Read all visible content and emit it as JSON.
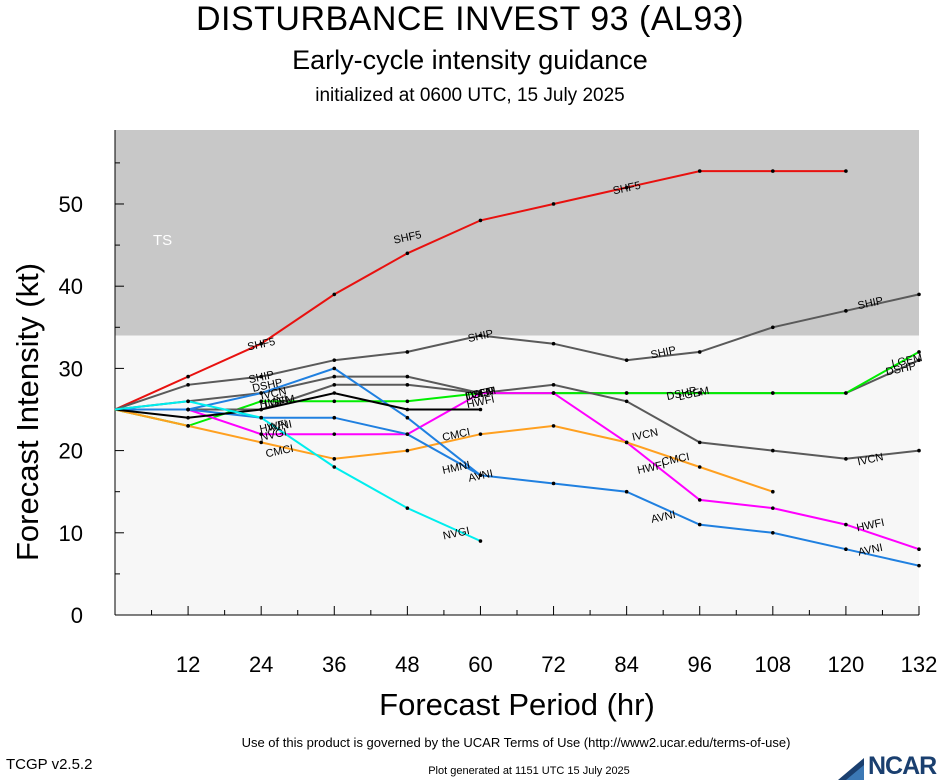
{
  "header": {
    "title": "DISTURBANCE INVEST 93 (AL93)",
    "subtitle": "Early-cycle intensity guidance",
    "initialized": "initialized at 0600 UTC, 15 July 2025"
  },
  "footer": {
    "terms": "Use of this product is governed by the UCAR Terms of Use (http://www2.ucar.edu/terms-of-use)",
    "version": "TCGP v2.5.2",
    "generated": "Plot generated at 1151 UTC   15 July 2025",
    "logo_text": "NCAR"
  },
  "chart_data": {
    "type": "line",
    "xlabel": "Forecast Period (hr)",
    "ylabel": "Forecast Intensity (kt)",
    "xlim": [
      0,
      132
    ],
    "ylim": [
      0,
      59
    ],
    "xticks": [
      12,
      24,
      36,
      48,
      60,
      72,
      84,
      96,
      108,
      120,
      132
    ],
    "yticks": [
      0,
      10,
      20,
      30,
      40,
      50
    ],
    "bands": [
      {
        "label": "TS",
        "from": 34,
        "to": 59,
        "color": "#c8c8c8"
      }
    ],
    "below_band_color": "#f7f7f7",
    "series": [
      {
        "name": "SHF5",
        "color": "#e8110f",
        "points": [
          [
            0,
            25
          ],
          [
            12,
            29
          ],
          [
            24,
            33
          ],
          [
            36,
            39
          ],
          [
            48,
            44
          ],
          [
            60,
            48
          ],
          [
            72,
            50
          ],
          [
            84,
            52
          ],
          [
            96,
            54
          ],
          [
            108,
            54
          ],
          [
            120,
            54
          ]
        ],
        "labels": [
          [
            24,
            33
          ],
          [
            48,
            46
          ],
          [
            84,
            52
          ]
        ]
      },
      {
        "name": "SHIP",
        "color": "#5a5a5a",
        "points": [
          [
            0,
            25
          ],
          [
            12,
            28
          ],
          [
            24,
            29
          ],
          [
            36,
            31
          ],
          [
            48,
            32
          ],
          [
            60,
            34
          ],
          [
            72,
            33
          ],
          [
            84,
            31
          ],
          [
            96,
            32
          ],
          [
            108,
            35
          ],
          [
            120,
            37
          ],
          [
            132,
            39
          ]
        ],
        "labels": [
          [
            24,
            29
          ],
          [
            60,
            34
          ],
          [
            90,
            32
          ],
          [
            124,
            38
          ]
        ]
      },
      {
        "name": "DSHP",
        "color": "#5a5a5a",
        "points": [
          [
            0,
            25
          ],
          [
            12,
            26
          ],
          [
            24,
            27
          ],
          [
            36,
            29
          ],
          [
            48,
            29
          ],
          [
            60,
            27
          ],
          [
            72,
            27
          ],
          [
            84,
            27
          ],
          [
            96,
            27
          ],
          [
            108,
            27
          ],
          [
            120,
            27
          ],
          [
            132,
            31
          ]
        ],
        "labels": [
          [
            25,
            28
          ],
          [
            60,
            27
          ],
          [
            93,
            27
          ],
          [
            129,
            30
          ]
        ]
      },
      {
        "name": "LGEM",
        "color": "#00ee00",
        "points": [
          [
            0,
            25
          ],
          [
            12,
            23
          ],
          [
            24,
            26
          ],
          [
            36,
            26
          ],
          [
            48,
            26
          ],
          [
            60,
            27
          ],
          [
            72,
            27
          ],
          [
            84,
            27
          ],
          [
            96,
            27
          ],
          [
            108,
            27
          ],
          [
            120,
            27
          ],
          [
            132,
            32
          ]
        ],
        "labels": [
          [
            27,
            26
          ],
          [
            60,
            27
          ],
          [
            95,
            27
          ],
          [
            130,
            31
          ]
        ]
      },
      {
        "name": "IVCN",
        "color": "#5a5a5a",
        "points": [
          [
            0,
            25
          ],
          [
            12,
            25
          ],
          [
            24,
            25
          ],
          [
            36,
            28
          ],
          [
            48,
            28
          ],
          [
            60,
            27
          ],
          [
            72,
            28
          ],
          [
            84,
            26
          ],
          [
            96,
            21
          ],
          [
            108,
            20
          ],
          [
            120,
            19
          ],
          [
            132,
            20
          ]
        ],
        "labels": [
          [
            26,
            27
          ],
          [
            60,
            27
          ],
          [
            87,
            22
          ],
          [
            124,
            19
          ]
        ]
      },
      {
        "name": "HWFI",
        "color": "#ff00ff",
        "points": [
          [
            0,
            25
          ],
          [
            12,
            25
          ],
          [
            24,
            22
          ],
          [
            36,
            22
          ],
          [
            48,
            22
          ],
          [
            60,
            27
          ],
          [
            72,
            27
          ],
          [
            84,
            21
          ],
          [
            96,
            14
          ],
          [
            108,
            13
          ],
          [
            120,
            11
          ],
          [
            132,
            8
          ]
        ],
        "labels": [
          [
            26,
            23
          ],
          [
            60,
            26
          ],
          [
            88,
            18
          ],
          [
            124,
            11
          ]
        ]
      },
      {
        "name": "CMCI",
        "color": "#ffa020",
        "points": [
          [
            0,
            25
          ],
          [
            12,
            23
          ],
          [
            24,
            21
          ],
          [
            36,
            19
          ],
          [
            48,
            20
          ],
          [
            60,
            22
          ],
          [
            72,
            23
          ],
          [
            84,
            21
          ],
          [
            96,
            18
          ],
          [
            108,
            15
          ]
        ],
        "labels": [
          [
            27,
            20
          ],
          [
            56,
            22
          ],
          [
            92,
            19
          ]
        ]
      },
      {
        "name": "AVNI",
        "color": "#2080e0",
        "points": [
          [
            0,
            25
          ],
          [
            12,
            25
          ],
          [
            24,
            24
          ],
          [
            36,
            24
          ],
          [
            48,
            22
          ],
          [
            60,
            17
          ],
          [
            72,
            16
          ],
          [
            84,
            15
          ],
          [
            96,
            11
          ],
          [
            108,
            10
          ],
          [
            120,
            8
          ],
          [
            132,
            6
          ]
        ],
        "labels": [
          [
            27,
            23
          ],
          [
            60,
            17
          ],
          [
            90,
            12
          ],
          [
            124,
            8
          ]
        ]
      },
      {
        "name": "HMNI",
        "color": "#2080e0",
        "points": [
          [
            0,
            25
          ],
          [
            12,
            25
          ],
          [
            24,
            27
          ],
          [
            36,
            30
          ],
          [
            48,
            24
          ],
          [
            60,
            17
          ]
        ],
        "labels": [
          [
            26,
            26
          ],
          [
            56,
            18
          ]
        ]
      },
      {
        "name": "OFCL",
        "color": "#000000",
        "points": [
          [
            0,
            25
          ],
          [
            12,
            24
          ],
          [
            24,
            25
          ],
          [
            36,
            27
          ],
          [
            48,
            25
          ],
          [
            60,
            25
          ]
        ],
        "labels": []
      },
      {
        "name": "NVGI",
        "color": "#00eeee",
        "points": [
          [
            0,
            25
          ],
          [
            12,
            26
          ],
          [
            24,
            24
          ],
          [
            36,
            18
          ],
          [
            48,
            13
          ],
          [
            60,
            9
          ]
        ],
        "labels": [
          [
            26,
            22
          ],
          [
            56,
            10
          ]
        ]
      }
    ]
  }
}
